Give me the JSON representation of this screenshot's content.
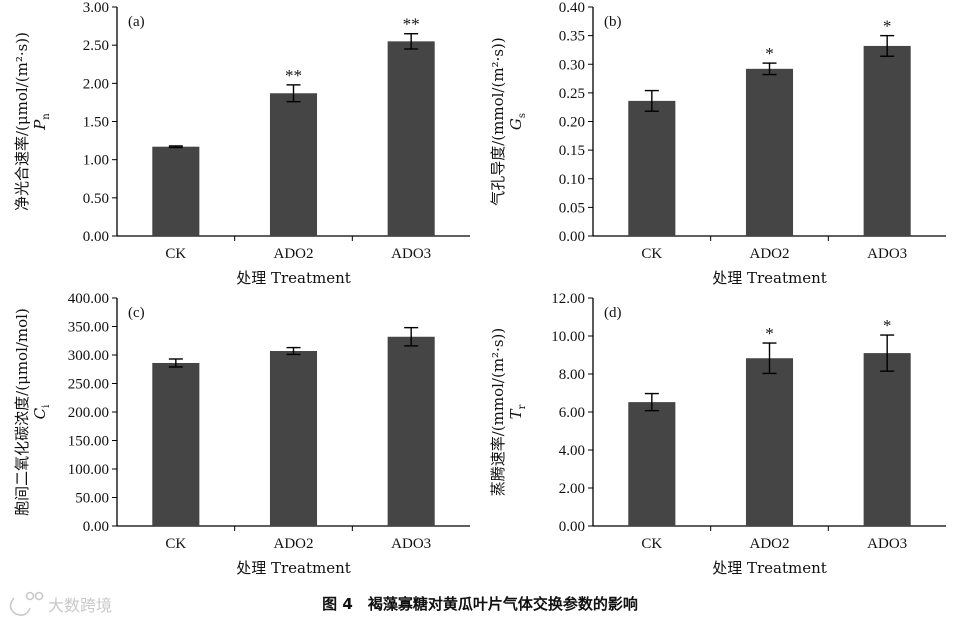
{
  "figure": {
    "caption": "图 4　褐藻寡糖对黄瓜叶片气体交换参数的影响",
    "watermark": "大数跨境"
  },
  "chart_data": [
    {
      "type": "bar",
      "panel_label": "(a)",
      "categories": [
        "CK",
        "ADO2",
        "ADO3"
      ],
      "values": [
        1.17,
        1.87,
        2.55
      ],
      "errors": [
        0.01,
        0.11,
        0.1
      ],
      "significance": [
        "",
        "**",
        "**"
      ],
      "xlabel": "处理 Treatment",
      "ylabel": "净光合速率/(μmol/(m²·s))",
      "ysymbol": "P",
      "ysub": "n",
      "ylim": [
        0,
        3.0
      ],
      "ytick_step": 0.5,
      "ytick_decimals": 2
    },
    {
      "type": "bar",
      "panel_label": "(b)",
      "categories": [
        "CK",
        "ADO2",
        "ADO3"
      ],
      "values": [
        0.236,
        0.292,
        0.332
      ],
      "errors": [
        0.018,
        0.01,
        0.018
      ],
      "significance": [
        "",
        "*",
        "*"
      ],
      "xlabel": "处理 Treatment",
      "ylabel": "气孔导度/(mmol/(m²·s))",
      "ysymbol": "G",
      "ysub": "s",
      "ylim": [
        0,
        0.4
      ],
      "ytick_step": 0.05,
      "ytick_decimals": 2
    },
    {
      "type": "bar",
      "panel_label": "(c)",
      "categories": [
        "CK",
        "ADO2",
        "ADO3"
      ],
      "values": [
        286,
        307,
        332
      ],
      "errors": [
        7,
        6,
        16
      ],
      "significance": [
        "",
        "",
        ""
      ],
      "xlabel": "处理 Treatment",
      "ylabel": "胞间二氧化碳浓度/(μmol/mol)",
      "ysymbol": "C",
      "ysub": "i",
      "ylim": [
        0,
        400
      ],
      "ytick_step": 50,
      "ytick_decimals": 2
    },
    {
      "type": "bar",
      "panel_label": "(d)",
      "categories": [
        "CK",
        "ADO2",
        "ADO3"
      ],
      "values": [
        6.52,
        8.83,
        9.1
      ],
      "errors": [
        0.45,
        0.8,
        0.95
      ],
      "significance": [
        "",
        "*",
        "*"
      ],
      "xlabel": "处理 Treatment",
      "ylabel": "蒸腾速率/(mmol/(m²·s))",
      "ysymbol": "T",
      "ysub": "r",
      "ylim": [
        0,
        12.0
      ],
      "ytick_step": 2,
      "ytick_decimals": 2
    }
  ]
}
